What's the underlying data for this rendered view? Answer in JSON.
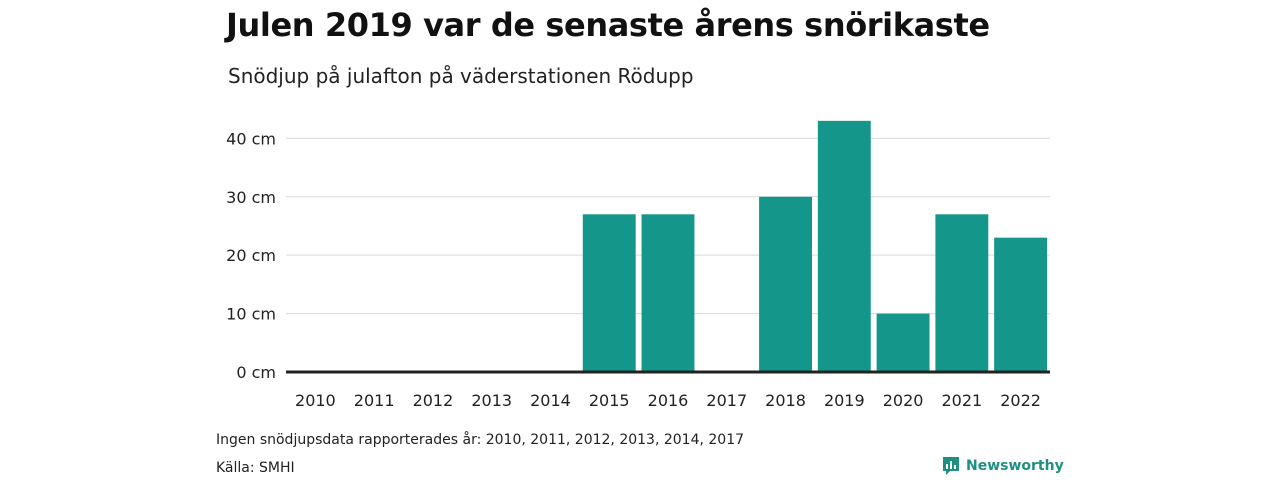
{
  "title": "Julen 2019 var de senaste årens snörikaste",
  "subtitle": "Snödjup på julafton på väderstationen Rödupp",
  "note": "Ingen snödjupsdata rapporterades år: 2010, 2011, 2012, 2013, 2014, 2017",
  "source": "Källa: SMHI",
  "brand": {
    "name": "Newsworthy",
    "icon": "newsworthy-logo-icon",
    "color": "#1f8f80"
  },
  "colors": {
    "bar": "#14968a",
    "grid": "#d9d9d9",
    "baseline": "#222222"
  },
  "chart_data": {
    "type": "bar",
    "categories": [
      "2010",
      "2011",
      "2012",
      "2013",
      "2014",
      "2015",
      "2016",
      "2017",
      "2018",
      "2019",
      "2020",
      "2021",
      "2022"
    ],
    "values": [
      null,
      null,
      null,
      null,
      null,
      27,
      27,
      null,
      30,
      43,
      10,
      27,
      23
    ],
    "yticks": [
      "0 cm",
      "10 cm",
      "20 cm",
      "30 cm",
      "40 cm"
    ],
    "ytick_values": [
      0,
      10,
      20,
      30,
      40
    ],
    "ylim": [
      0,
      44
    ],
    "grid": true,
    "xlabel": "",
    "ylabel": ""
  }
}
